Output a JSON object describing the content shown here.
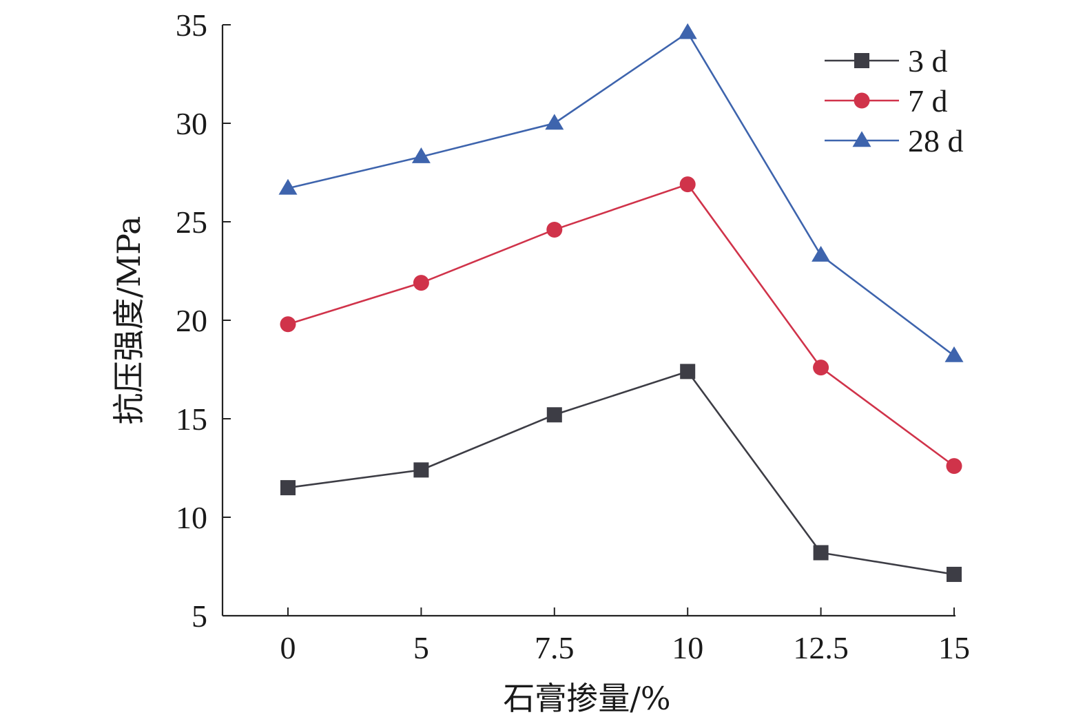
{
  "chart_data": {
    "type": "line",
    "title": "",
    "xlabel": "石膏掺量/%",
    "ylabel": "抗压强度/MPa",
    "categories": [
      "0",
      "5",
      "7.5",
      "10",
      "12.5",
      "15"
    ],
    "ylim": [
      5,
      35
    ],
    "yticks": [
      "5",
      "10",
      "15",
      "20",
      "25",
      "30",
      "35"
    ],
    "grid": false,
    "legend_position": "top-right",
    "series": [
      {
        "name": "3 d",
        "marker": "square",
        "color": "#3d3d45",
        "values": [
          11.5,
          12.4,
          15.2,
          17.4,
          8.2,
          7.1
        ]
      },
      {
        "name": "7 d",
        "marker": "circle",
        "color": "#d0334a",
        "values": [
          19.8,
          21.9,
          24.6,
          26.9,
          17.6,
          12.6
        ]
      },
      {
        "name": "28 d",
        "marker": "triangle",
        "color": "#3e64ad",
        "values": [
          26.7,
          28.3,
          30.0,
          34.6,
          23.3,
          18.2
        ]
      }
    ]
  }
}
